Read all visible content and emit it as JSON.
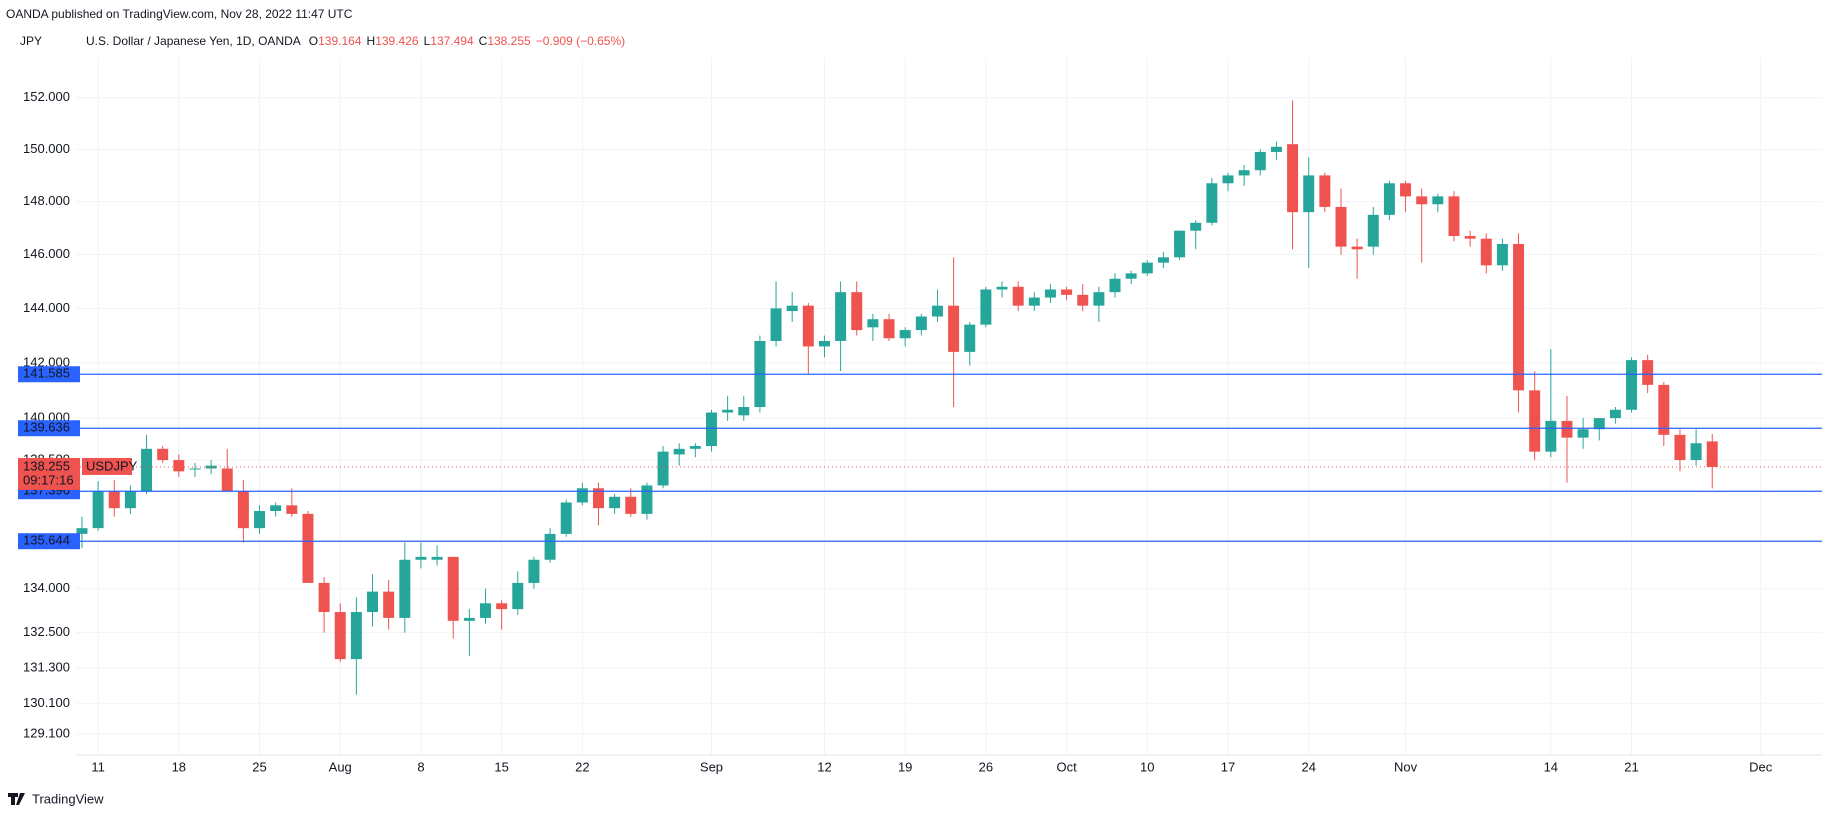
{
  "header": {
    "published": "OANDA published on TradingView.com, Nov 28, 2022 11:47 UTC",
    "currency": "JPY",
    "symbol": "U.S. Dollar / Japanese Yen, 1D, OANDA",
    "ohlc": [
      {
        "key": "O",
        "value": "139.164"
      },
      {
        "key": "H",
        "value": "139.426"
      },
      {
        "key": "L",
        "value": "137.494"
      },
      {
        "key": "C",
        "value": "138.255"
      }
    ],
    "change": "−0.909 (−0.65%)"
  },
  "footer": {
    "brand": "TradingView"
  },
  "chart_data": {
    "type": "candlestick",
    "log_scale": true,
    "grid": true,
    "up_color": "#26a69a",
    "down_color": "#ef5350",
    "line_color": "#2962ff",
    "ylim": [
      128.4,
      153.56
    ],
    "yticks": [
      {
        "value": 152,
        "label": "152.000"
      },
      {
        "value": 150,
        "label": "150.000"
      },
      {
        "value": 148,
        "label": "148.000"
      },
      {
        "value": 146,
        "label": "146.000"
      },
      {
        "value": 144,
        "label": "144.000"
      },
      {
        "value": 142,
        "label": "142.000"
      },
      {
        "value": 140,
        "label": "140.000"
      },
      {
        "value": 138.5,
        "label": "138.500"
      },
      {
        "value": 134,
        "label": "134.000"
      },
      {
        "value": 132.5,
        "label": "132.500"
      },
      {
        "value": 131.3,
        "label": "131.300"
      },
      {
        "value": 130.1,
        "label": "130.100"
      },
      {
        "value": 129.1,
        "label": "129.100"
      }
    ],
    "xlim": [
      -0.37,
      107.8
    ],
    "xticks": [
      {
        "value": 1,
        "label": "11"
      },
      {
        "value": 6,
        "label": "18"
      },
      {
        "value": 11,
        "label": "25"
      },
      {
        "value": 16,
        "label": "Aug"
      },
      {
        "value": 21,
        "label": "8"
      },
      {
        "value": 26,
        "label": "15"
      },
      {
        "value": 31,
        "label": "22"
      },
      {
        "value": 39,
        "label": "Sep"
      },
      {
        "value": 46,
        "label": "12"
      },
      {
        "value": 51,
        "label": "19"
      },
      {
        "value": 56,
        "label": "26"
      },
      {
        "value": 61,
        "label": "Oct"
      },
      {
        "value": 66,
        "label": "10"
      },
      {
        "value": 71,
        "label": "17"
      },
      {
        "value": 76,
        "label": "24"
      },
      {
        "value": 82,
        "label": "Nov"
      },
      {
        "value": 91,
        "label": "14"
      },
      {
        "value": 96,
        "label": "21"
      },
      {
        "value": 104,
        "label": "Dec"
      }
    ],
    "hlines": [
      {
        "value": 141.585,
        "label": "141.585"
      },
      {
        "value": 139.636,
        "label": "139.636"
      },
      {
        "value": 137.396,
        "label": "137.396"
      },
      {
        "value": 135.644,
        "label": "135.644"
      }
    ],
    "last_price": {
      "value": 138.255,
      "label": "138.255",
      "symbol": "USDJPY",
      "countdown": "09:17:16"
    },
    "open": [
      135.9,
      136.1,
      137.4,
      136.8,
      137.4,
      138.9,
      138.5,
      138.2,
      138.2,
      138.2,
      137.4,
      136.1,
      136.7,
      136.9,
      136.6,
      134.2,
      133.2,
      131.6,
      133.2,
      133.9,
      133.0,
      135.0,
      135.0,
      135.1,
      132.9,
      133.0,
      133.5,
      133.3,
      134.2,
      135.0,
      135.9,
      137.0,
      137.5,
      136.8,
      137.2,
      136.6,
      137.6,
      138.7,
      138.9,
      139.0,
      140.2,
      140.1,
      140.4,
      142.8,
      143.9,
      144.1,
      142.6,
      142.8,
      144.6,
      143.3,
      143.6,
      142.9,
      143.2,
      143.7,
      144.1,
      142.4,
      143.4,
      144.7,
      144.8,
      144.1,
      144.4,
      144.7,
      144.5,
      144.1,
      144.6,
      145.1,
      145.3,
      145.7,
      145.9,
      146.9,
      147.2,
      148.7,
      149.0,
      149.2,
      149.9,
      150.2,
      147.6,
      149.0,
      147.8,
      146.3,
      146.3,
      147.5,
      148.7,
      148.2,
      147.9,
      148.2,
      146.7,
      146.6,
      145.6,
      146.4,
      141.0,
      138.8,
      139.9,
      139.3,
      139.6,
      140.0,
      140.3,
      142.1,
      141.2,
      139.4,
      138.5,
      139.164
    ],
    "high": [
      136.5,
      137.75,
      137.8,
      137.6,
      139.4,
      139.0,
      138.7,
      138.4,
      138.5,
      138.9,
      137.8,
      136.9,
      137.0,
      137.5,
      136.7,
      134.4,
      133.5,
      133.7,
      134.5,
      134.3,
      135.6,
      135.6,
      135.5,
      135.1,
      133.3,
      134.0,
      133.6,
      134.6,
      135.1,
      136.1,
      137.1,
      137.7,
      137.7,
      137.3,
      137.5,
      137.7,
      139.0,
      139.1,
      139.1,
      140.3,
      140.8,
      140.8,
      143.0,
      145.0,
      144.6,
      144.2,
      143.0,
      145.0,
      145.0,
      143.8,
      143.8,
      143.3,
      143.8,
      144.7,
      145.9,
      143.5,
      144.8,
      145.0,
      145.0,
      144.6,
      144.9,
      144.8,
      144.9,
      144.8,
      145.3,
      145.4,
      145.8,
      146.1,
      146.9,
      147.3,
      148.9,
      149.1,
      149.4,
      150.0,
      150.3,
      151.9,
      149.7,
      149.1,
      148.5,
      146.6,
      147.8,
      148.8,
      148.8,
      148.5,
      148.3,
      148.4,
      146.9,
      146.8,
      146.6,
      146.8,
      141.7,
      142.5,
      140.8,
      140.0,
      140.0,
      140.4,
      142.2,
      142.3,
      141.3,
      139.6,
      139.6,
      139.426
    ],
    "low": [
      135.4,
      136.0,
      136.5,
      136.6,
      137.3,
      138.4,
      137.9,
      137.9,
      138.0,
      137.4,
      135.6,
      135.9,
      136.5,
      136.5,
      134.2,
      132.5,
      131.5,
      130.4,
      132.7,
      132.6,
      132.5,
      134.7,
      134.8,
      132.3,
      131.7,
      132.8,
      132.6,
      133.1,
      134.0,
      134.9,
      135.8,
      136.9,
      136.2,
      136.6,
      136.5,
      136.4,
      137.5,
      138.3,
      138.6,
      138.8,
      139.9,
      139.9,
      140.2,
      142.6,
      143.5,
      141.6,
      142.2,
      141.7,
      143.0,
      142.8,
      142.8,
      142.6,
      143.0,
      143.5,
      140.4,
      141.9,
      143.3,
      144.4,
      143.9,
      143.9,
      144.2,
      144.3,
      143.9,
      143.5,
      144.4,
      144.9,
      145.2,
      145.5,
      145.8,
      146.2,
      147.1,
      148.4,
      148.6,
      149.0,
      149.6,
      146.2,
      145.5,
      147.6,
      146.0,
      145.1,
      146.0,
      147.3,
      147.6,
      145.7,
      147.6,
      146.5,
      146.3,
      145.3,
      145.4,
      140.2,
      138.5,
      138.6,
      137.7,
      138.9,
      139.2,
      139.8,
      140.2,
      140.9,
      139.0,
      138.1,
      138.3,
      137.494
    ],
    "close": [
      136.1,
      137.4,
      136.8,
      137.4,
      138.9,
      138.5,
      138.1,
      138.2,
      138.3,
      137.4,
      136.1,
      136.7,
      136.9,
      136.6,
      134.2,
      133.2,
      131.6,
      133.2,
      133.9,
      133.0,
      135.0,
      135.1,
      135.1,
      132.9,
      133.0,
      133.5,
      133.3,
      134.2,
      135.0,
      135.9,
      137.0,
      137.5,
      136.8,
      137.2,
      136.6,
      137.6,
      138.8,
      138.9,
      139.0,
      140.2,
      140.3,
      140.4,
      142.8,
      144.0,
      144.1,
      142.6,
      142.8,
      144.6,
      143.2,
      143.6,
      142.9,
      143.2,
      143.7,
      144.1,
      142.4,
      143.4,
      144.7,
      144.8,
      144.1,
      144.4,
      144.7,
      144.5,
      144.1,
      144.6,
      145.1,
      145.3,
      145.7,
      145.9,
      146.9,
      147.2,
      148.7,
      149.0,
      149.2,
      149.9,
      150.1,
      147.6,
      149.0,
      147.8,
      146.3,
      146.2,
      147.5,
      148.7,
      148.2,
      147.9,
      148.2,
      146.7,
      146.6,
      145.6,
      146.4,
      141.0,
      138.8,
      139.9,
      139.3,
      139.6,
      140.0,
      140.3,
      142.1,
      141.2,
      139.4,
      138.5,
      139.1,
      138.255
    ]
  }
}
